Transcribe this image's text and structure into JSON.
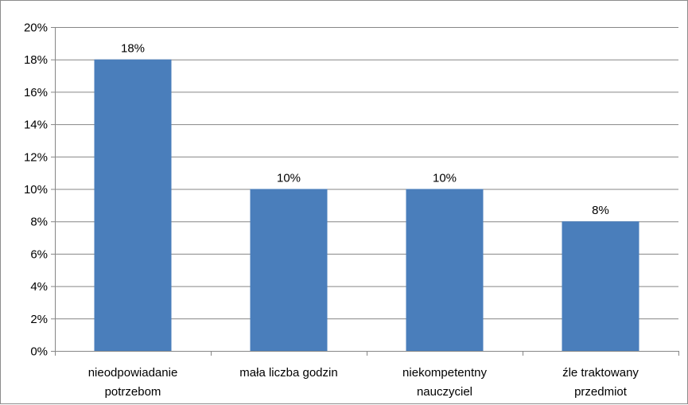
{
  "chart_data": {
    "type": "bar",
    "title": "",
    "xlabel": "",
    "ylabel": "",
    "categories": [
      [
        "nieodpowiadanie",
        "potrzebom"
      ],
      [
        "mała liczba godzin"
      ],
      [
        "niekompetentny",
        "nauczyciel"
      ],
      [
        "źle traktowany",
        "przedmiot"
      ]
    ],
    "values": [
      18,
      10,
      10,
      8
    ],
    "data_labels": [
      "18%",
      "10%",
      "10%",
      "8%"
    ],
    "ylim": [
      0,
      20
    ],
    "y_ticks": [
      0,
      2,
      4,
      6,
      8,
      10,
      12,
      14,
      16,
      18,
      20
    ],
    "y_tick_labels": [
      "0%",
      "2%",
      "4%",
      "6%",
      "8%",
      "10%",
      "12%",
      "14%",
      "16%",
      "18%",
      "20%"
    ],
    "grid": true,
    "legend": "none",
    "colors": {
      "bar": "#4a7ebb",
      "gridline": "#868686",
      "axis": "#868686",
      "frame": "#8c8c8c"
    }
  }
}
